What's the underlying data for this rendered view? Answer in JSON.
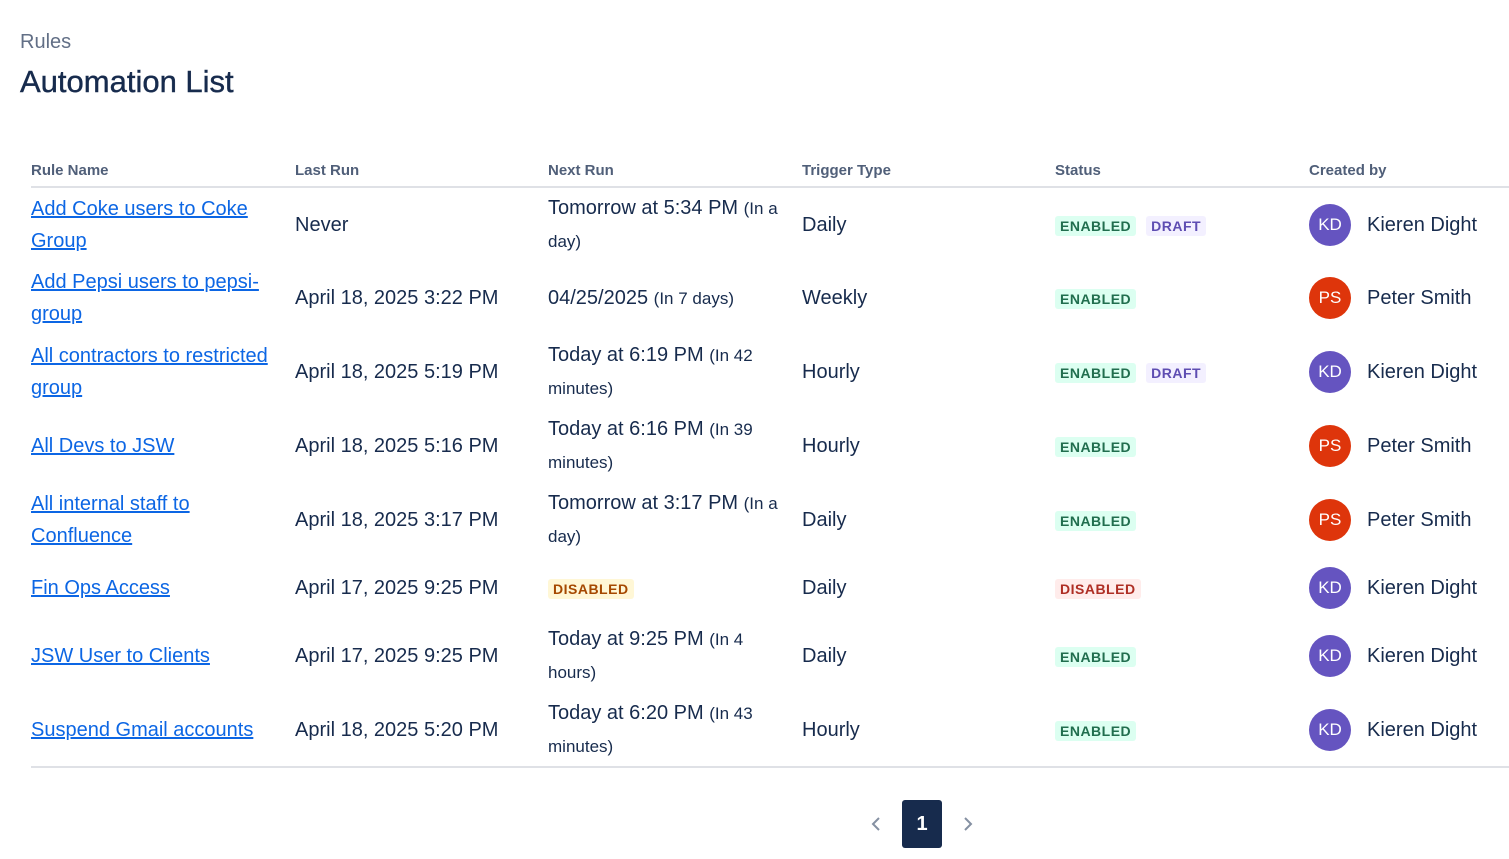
{
  "header": {
    "breadcrumb": "Rules",
    "title": "Automation List"
  },
  "table": {
    "columns": [
      "Rule Name",
      "Last Run",
      "Next Run",
      "Trigger Type",
      "Status",
      "Created by"
    ],
    "rows": [
      {
        "name": "Add Coke users to Coke Group",
        "last_run": "Never",
        "next_run": {
          "text": "Tomorrow at 5:34 PM",
          "note": "(In a day)"
        },
        "trigger": "Daily",
        "status": [
          "ENABLED",
          "DRAFT"
        ],
        "creator": {
          "initials": "KD",
          "name": "Kieren Dight",
          "color": "#6554c0"
        }
      },
      {
        "name": "Add Pepsi users to pepsi-group",
        "last_run": "April 18, 2025 3:22 PM",
        "next_run": {
          "text": "04/25/2025",
          "note": "(In 7 days)"
        },
        "trigger": "Weekly",
        "status": [
          "ENABLED"
        ],
        "creator": {
          "initials": "PS",
          "name": "Peter Smith",
          "color": "#de350b"
        }
      },
      {
        "name": "All contractors to restricted group",
        "last_run": "April 18, 2025 5:19 PM",
        "next_run": {
          "text": "Today at 6:19 PM",
          "note": "(In 42 minutes)"
        },
        "trigger": "Hourly",
        "status": [
          "ENABLED",
          "DRAFT"
        ],
        "creator": {
          "initials": "KD",
          "name": "Kieren Dight",
          "color": "#6554c0"
        }
      },
      {
        "name": "All Devs to JSW",
        "last_run": "April 18, 2025 5:16 PM",
        "next_run": {
          "text": "Today at 6:16 PM",
          "note": "(In 39 minutes)"
        },
        "trigger": "Hourly",
        "status": [
          "ENABLED"
        ],
        "creator": {
          "initials": "PS",
          "name": "Peter Smith",
          "color": "#de350b"
        }
      },
      {
        "name": "All internal staff to Confluence",
        "last_run": "April 18, 2025 3:17 PM",
        "next_run": {
          "text": "Tomorrow at 3:17 PM",
          "note": "(In a day)"
        },
        "trigger": "Daily",
        "status": [
          "ENABLED"
        ],
        "creator": {
          "initials": "PS",
          "name": "Peter Smith",
          "color": "#de350b"
        }
      },
      {
        "name": "Fin Ops Access",
        "last_run": "April 17, 2025 9:25 PM",
        "next_run": {
          "badge": "DISABLED"
        },
        "trigger": "Daily",
        "status": [
          "DISABLED"
        ],
        "creator": {
          "initials": "KD",
          "name": "Kieren Dight",
          "color": "#6554c0"
        }
      },
      {
        "name": "JSW User to Clients",
        "last_run": "April 17, 2025 9:25 PM",
        "next_run": {
          "text": "Today at 9:25 PM",
          "note": "(In 4 hours)"
        },
        "trigger": "Daily",
        "status": [
          "ENABLED"
        ],
        "creator": {
          "initials": "KD",
          "name": "Kieren Dight",
          "color": "#6554c0"
        }
      },
      {
        "name": "Suspend Gmail accounts",
        "last_run": "April 18, 2025 5:20 PM",
        "next_run": {
          "text": "Today at 6:20 PM",
          "note": "(In 43 minutes)"
        },
        "trigger": "Hourly",
        "status": [
          "ENABLED"
        ],
        "creator": {
          "initials": "KD",
          "name": "Kieren Dight",
          "color": "#6554c0"
        }
      }
    ]
  },
  "pagination": {
    "current": "1"
  }
}
